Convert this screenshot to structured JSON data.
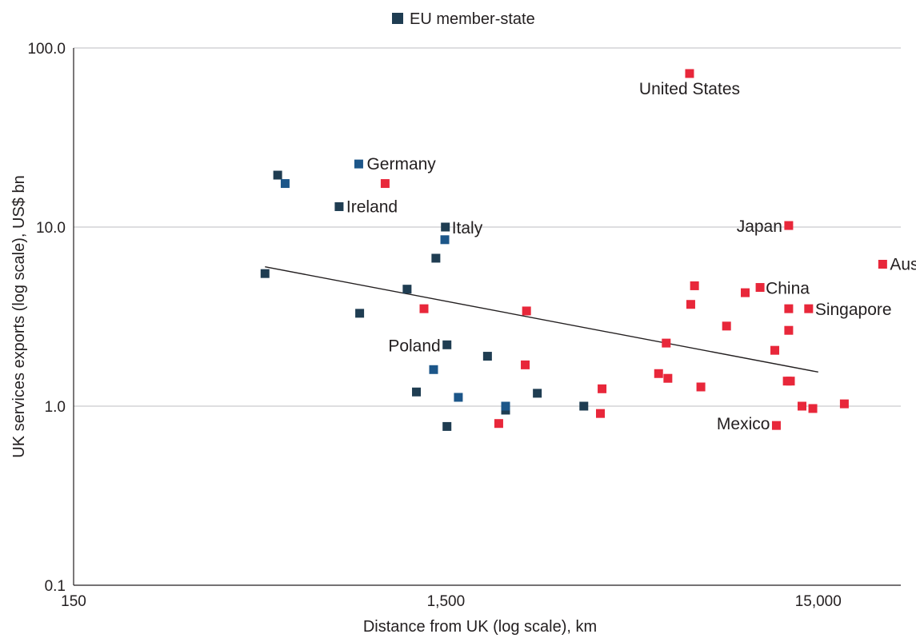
{
  "chart_data": {
    "type": "scatter",
    "title": "",
    "xlabel": "Distance from UK (log scale), km",
    "ylabel": "UK services exports (log scale), US$ bn",
    "x_scale": "log",
    "y_scale": "log",
    "xlim": [
      150,
      25000
    ],
    "ylim": [
      0.1,
      100
    ],
    "x_ticks": [
      150,
      1500,
      15000
    ],
    "x_tick_labels": [
      "150",
      "1,500",
      "15,000"
    ],
    "y_ticks": [
      0.1,
      1,
      10,
      100
    ],
    "y_tick_labels": [
      "0.1",
      "1.0",
      "10.0",
      "100.0"
    ],
    "grid": "horizontal",
    "legend": {
      "position": "top-center",
      "entries": [
        {
          "label": "EU member-state",
          "color": "#1f3d52"
        }
      ]
    },
    "colors": {
      "eu_member": "#1f3d52",
      "eu_member_alt": "#1c5689",
      "non_eu": "#e8273a"
    },
    "trendline": {
      "x1": 490,
      "y1": 6.0,
      "x2": 15000,
      "y2": 1.55
    },
    "series": [
      {
        "name": "EU member-state",
        "color": "#1f3d52",
        "points": [
          {
            "x": 490,
            "y": 5.5
          },
          {
            "x": 530,
            "y": 19.5
          },
          {
            "x": 555,
            "y": 17.5
          },
          {
            "x": 775,
            "y": 13.0,
            "label": "Ireland"
          },
          {
            "x": 880,
            "y": 3.3
          },
          {
            "x": 875,
            "y": 22.5,
            "label": "Germany"
          },
          {
            "x": 1180,
            "y": 4.5
          },
          {
            "x": 1250,
            "y": 1.2
          },
          {
            "x": 1390,
            "y": 1.6
          },
          {
            "x": 1410,
            "y": 6.7
          },
          {
            "x": 1495,
            "y": 10.0,
            "label": "Italy"
          },
          {
            "x": 1490,
            "y": 8.5
          },
          {
            "x": 1510,
            "y": 2.2,
            "label": "Poland"
          },
          {
            "x": 1510,
            "y": 0.77
          },
          {
            "x": 1620,
            "y": 1.12
          },
          {
            "x": 1940,
            "y": 1.9
          },
          {
            "x": 2170,
            "y": 0.95
          },
          {
            "x": 2170,
            "y": 1.0
          },
          {
            "x": 2640,
            "y": 1.18
          },
          {
            "x": 3520,
            "y": 1.0
          }
        ]
      },
      {
        "color": "#e8273a",
        "points": [
          {
            "x": 1030,
            "y": 17.5
          },
          {
            "x": 1310,
            "y": 3.5
          },
          {
            "x": 2080,
            "y": 0.8
          },
          {
            "x": 2470,
            "y": 3.4
          },
          {
            "x": 2450,
            "y": 1.7
          },
          {
            "x": 3940,
            "y": 1.25
          },
          {
            "x": 3900,
            "y": 0.91
          },
          {
            "x": 5590,
            "y": 1.52
          },
          {
            "x": 5860,
            "y": 2.25
          },
          {
            "x": 5920,
            "y": 1.43
          },
          {
            "x": 6820,
            "y": 3.7
          },
          {
            "x": 6980,
            "y": 4.7
          },
          {
            "x": 6770,
            "y": 72.0,
            "label": "United States"
          },
          {
            "x": 7260,
            "y": 1.28
          },
          {
            "x": 8510,
            "y": 2.8
          },
          {
            "x": 9550,
            "y": 4.3
          },
          {
            "x": 10470,
            "y": 4.6,
            "label": "China"
          },
          {
            "x": 11470,
            "y": 2.05
          },
          {
            "x": 11580,
            "y": 0.78,
            "label": "Mexico"
          },
          {
            "x": 12390,
            "y": 1.38
          },
          {
            "x": 12630,
            "y": 1.38
          },
          {
            "x": 12500,
            "y": 3.5
          },
          {
            "x": 12500,
            "y": 2.65
          },
          {
            "x": 12500,
            "y": 10.2,
            "label": "Japan"
          },
          {
            "x": 13570,
            "y": 1.0
          },
          {
            "x": 14140,
            "y": 3.5,
            "label": "Singapore"
          },
          {
            "x": 14510,
            "y": 0.97
          },
          {
            "x": 17630,
            "y": 1.03
          },
          {
            "x": 22350,
            "y": 6.2,
            "label": "Australia"
          }
        ]
      }
    ]
  }
}
